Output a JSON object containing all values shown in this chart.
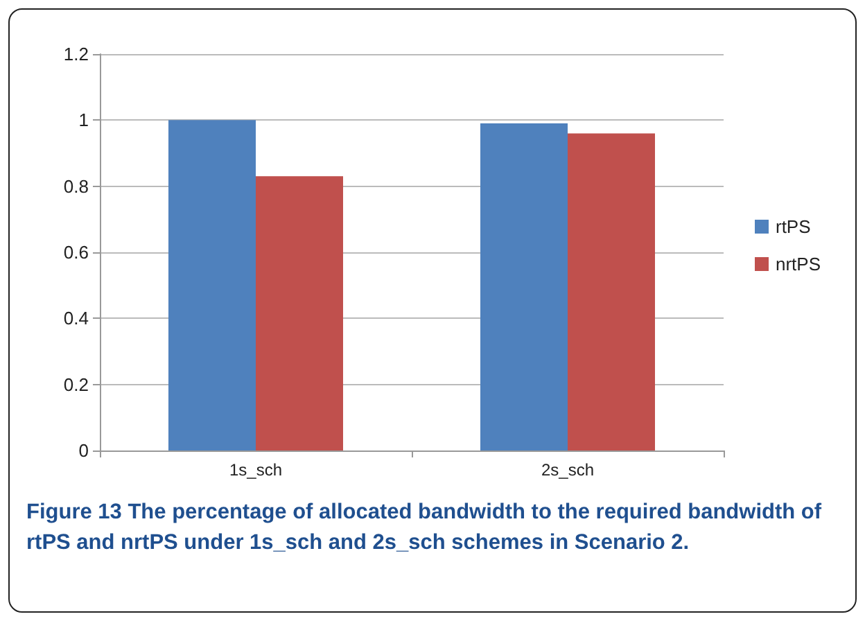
{
  "chart_data": {
    "type": "bar",
    "categories": [
      "1s_sch",
      "2s_sch"
    ],
    "series": [
      {
        "name": "rtPS",
        "color": "#4f81bd",
        "values": [
          1,
          0.99
        ]
      },
      {
        "name": "nrtPS",
        "color": "#c0504d",
        "values": [
          0.83,
          0.96
        ]
      }
    ],
    "ylim": [
      0,
      1.2
    ],
    "yticks": [
      0,
      0.2,
      0.4,
      0.6,
      0.8,
      1,
      1.2
    ],
    "grid": "y",
    "legend": "right",
    "annotations": [
      "Figure 13 The percentage of allocated bandwidth to the required bandwidth of rtPS and nrtPS under 1s_sch and 2s_sch schemes in Scenario 2."
    ]
  }
}
